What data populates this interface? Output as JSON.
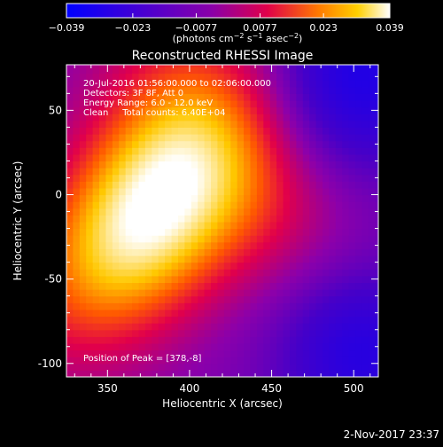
{
  "chart_data": {
    "type": "heatmap",
    "title": "Reconstructed RHESSI Image",
    "xlabel": "Heliocentric X (arcsec)",
    "ylabel": "Heliocentric Y (arcsec)",
    "xlim": [
      325,
      515
    ],
    "ylim": [
      -108,
      77
    ],
    "x_ticks": [
      350,
      400,
      450,
      500
    ],
    "y_ticks": [
      -100,
      -50,
      0,
      50
    ],
    "colorbar": {
      "min": -0.039,
      "max": 0.039,
      "ticks": [
        "-0.039",
        "-0.023",
        "-0.0077",
        "0.0077",
        "0.023",
        "0.039"
      ],
      "label": "(photons cm^-2 s^-1 asec^-2)"
    },
    "annotations": [
      "20-Jul-2016 01:56:00.000 to 02:06:00.000",
      "Detectors: 3F 8F, Att 0",
      "Energy Range: 6.0 - 12.0 keV",
      "Clean     Total counts: 6.40E+04"
    ],
    "peak_label": "Position of Peak = [378,-8]",
    "peak": [
      378,
      -8
    ],
    "timestamp": "2-Nov-2017 23:37"
  }
}
